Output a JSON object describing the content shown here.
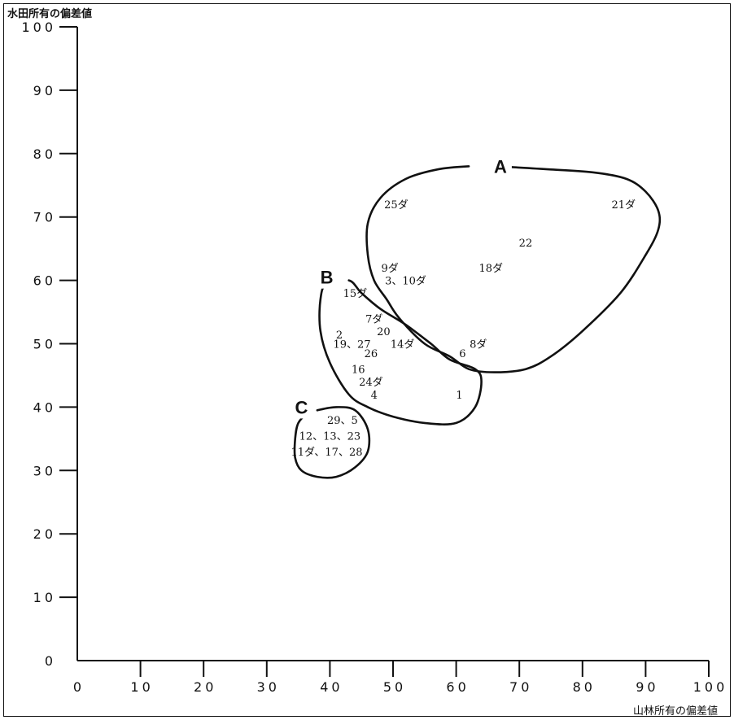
{
  "chart_data": {
    "type": "scatter",
    "title": "",
    "xlabel": "山林所有の偏差値",
    "ylabel": "水田所有の偏差値",
    "xlim": [
      0,
      100
    ],
    "ylim": [
      0,
      100
    ],
    "x_ticks": [
      0,
      10,
      20,
      30,
      40,
      50,
      60,
      70,
      80,
      90,
      100
    ],
    "y_ticks": [
      0,
      10,
      20,
      30,
      40,
      50,
      60,
      70,
      80,
      90,
      100
    ],
    "grid": false,
    "legend": "none",
    "points": [
      {
        "label": "25ダ",
        "x": 50.5,
        "y": 72.0
      },
      {
        "label": "21ダ",
        "x": 86.5,
        "y": 72.0
      },
      {
        "label": "22",
        "x": 71.0,
        "y": 66.0
      },
      {
        "label": "9ダ",
        "x": 49.5,
        "y": 62.0
      },
      {
        "label": "18ダ",
        "x": 65.5,
        "y": 62.0
      },
      {
        "label": "3、10ダ",
        "x": 52.0,
        "y": 60.0
      },
      {
        "label": "15ダ",
        "x": 44.0,
        "y": 58.0
      },
      {
        "label": "7ダ",
        "x": 47.0,
        "y": 54.0
      },
      {
        "label": "20",
        "x": 48.5,
        "y": 52.0
      },
      {
        "label": "2",
        "x": 41.5,
        "y": 51.5
      },
      {
        "label": "19、27",
        "x": 43.5,
        "y": 50.0
      },
      {
        "label": "14ダ",
        "x": 51.5,
        "y": 50.0
      },
      {
        "label": "8ダ",
        "x": 63.5,
        "y": 50.0
      },
      {
        "label": "26",
        "x": 46.5,
        "y": 48.5
      },
      {
        "label": "6",
        "x": 61.0,
        "y": 48.5
      },
      {
        "label": "16",
        "x": 44.5,
        "y": 46.0
      },
      {
        "label": "24ダ",
        "x": 46.5,
        "y": 44.0
      },
      {
        "label": "4",
        "x": 47.0,
        "y": 42.0
      },
      {
        "label": "1",
        "x": 60.5,
        "y": 42.0
      },
      {
        "label": "29、5",
        "x": 42.0,
        "y": 38.0
      },
      {
        "label": "12、13、23",
        "x": 40.0,
        "y": 35.5
      },
      {
        "label": "11ダ、17、28",
        "x": 39.5,
        "y": 33.0
      }
    ],
    "groups": [
      {
        "name": "A",
        "label_x": 67.0,
        "label_y": 78.0,
        "outline": [
          [
            66,
            78
          ],
          [
            75,
            77.5
          ],
          [
            82,
            77
          ],
          [
            87,
            76
          ],
          [
            90,
            74
          ],
          [
            92,
            71
          ],
          [
            92,
            68
          ],
          [
            90,
            64
          ],
          [
            86,
            58
          ],
          [
            80,
            52
          ],
          [
            75,
            48
          ],
          [
            71,
            46
          ],
          [
            66,
            45.5
          ],
          [
            62,
            46
          ],
          [
            59,
            48
          ],
          [
            55,
            50
          ],
          [
            51,
            54
          ],
          [
            49,
            57
          ],
          [
            47,
            60
          ],
          [
            46,
            64
          ],
          [
            46,
            69
          ],
          [
            48,
            73
          ],
          [
            52,
            76
          ],
          [
            57,
            77.5
          ],
          [
            62,
            78
          ]
        ]
      },
      {
        "name": "B",
        "label_x": 39.5,
        "label_y": 60.5,
        "outline": [
          [
            43,
            60
          ],
          [
            45,
            58
          ],
          [
            48,
            55.5
          ],
          [
            52,
            53
          ],
          [
            56,
            50
          ],
          [
            59,
            47.5
          ],
          [
            63,
            46
          ],
          [
            64,
            44
          ],
          [
            63,
            40
          ],
          [
            60,
            37.5
          ],
          [
            55,
            37.5
          ],
          [
            50,
            38.5
          ],
          [
            46,
            40
          ],
          [
            43,
            42
          ],
          [
            40,
            47
          ],
          [
            38.5,
            52
          ],
          [
            38.5,
            57
          ],
          [
            39.5,
            59.5
          ]
        ]
      },
      {
        "name": "C",
        "label_x": 35.5,
        "label_y": 40.0,
        "outline": [
          [
            38,
            39.5
          ],
          [
            41,
            40
          ],
          [
            44,
            39.5
          ],
          [
            46,
            36.5
          ],
          [
            46,
            33
          ],
          [
            44,
            30.5
          ],
          [
            41,
            29
          ],
          [
            38,
            29
          ],
          [
            35.5,
            30
          ],
          [
            34.5,
            32
          ],
          [
            34.5,
            35
          ],
          [
            35,
            37.5
          ],
          [
            36.5,
            39
          ]
        ]
      }
    ]
  }
}
